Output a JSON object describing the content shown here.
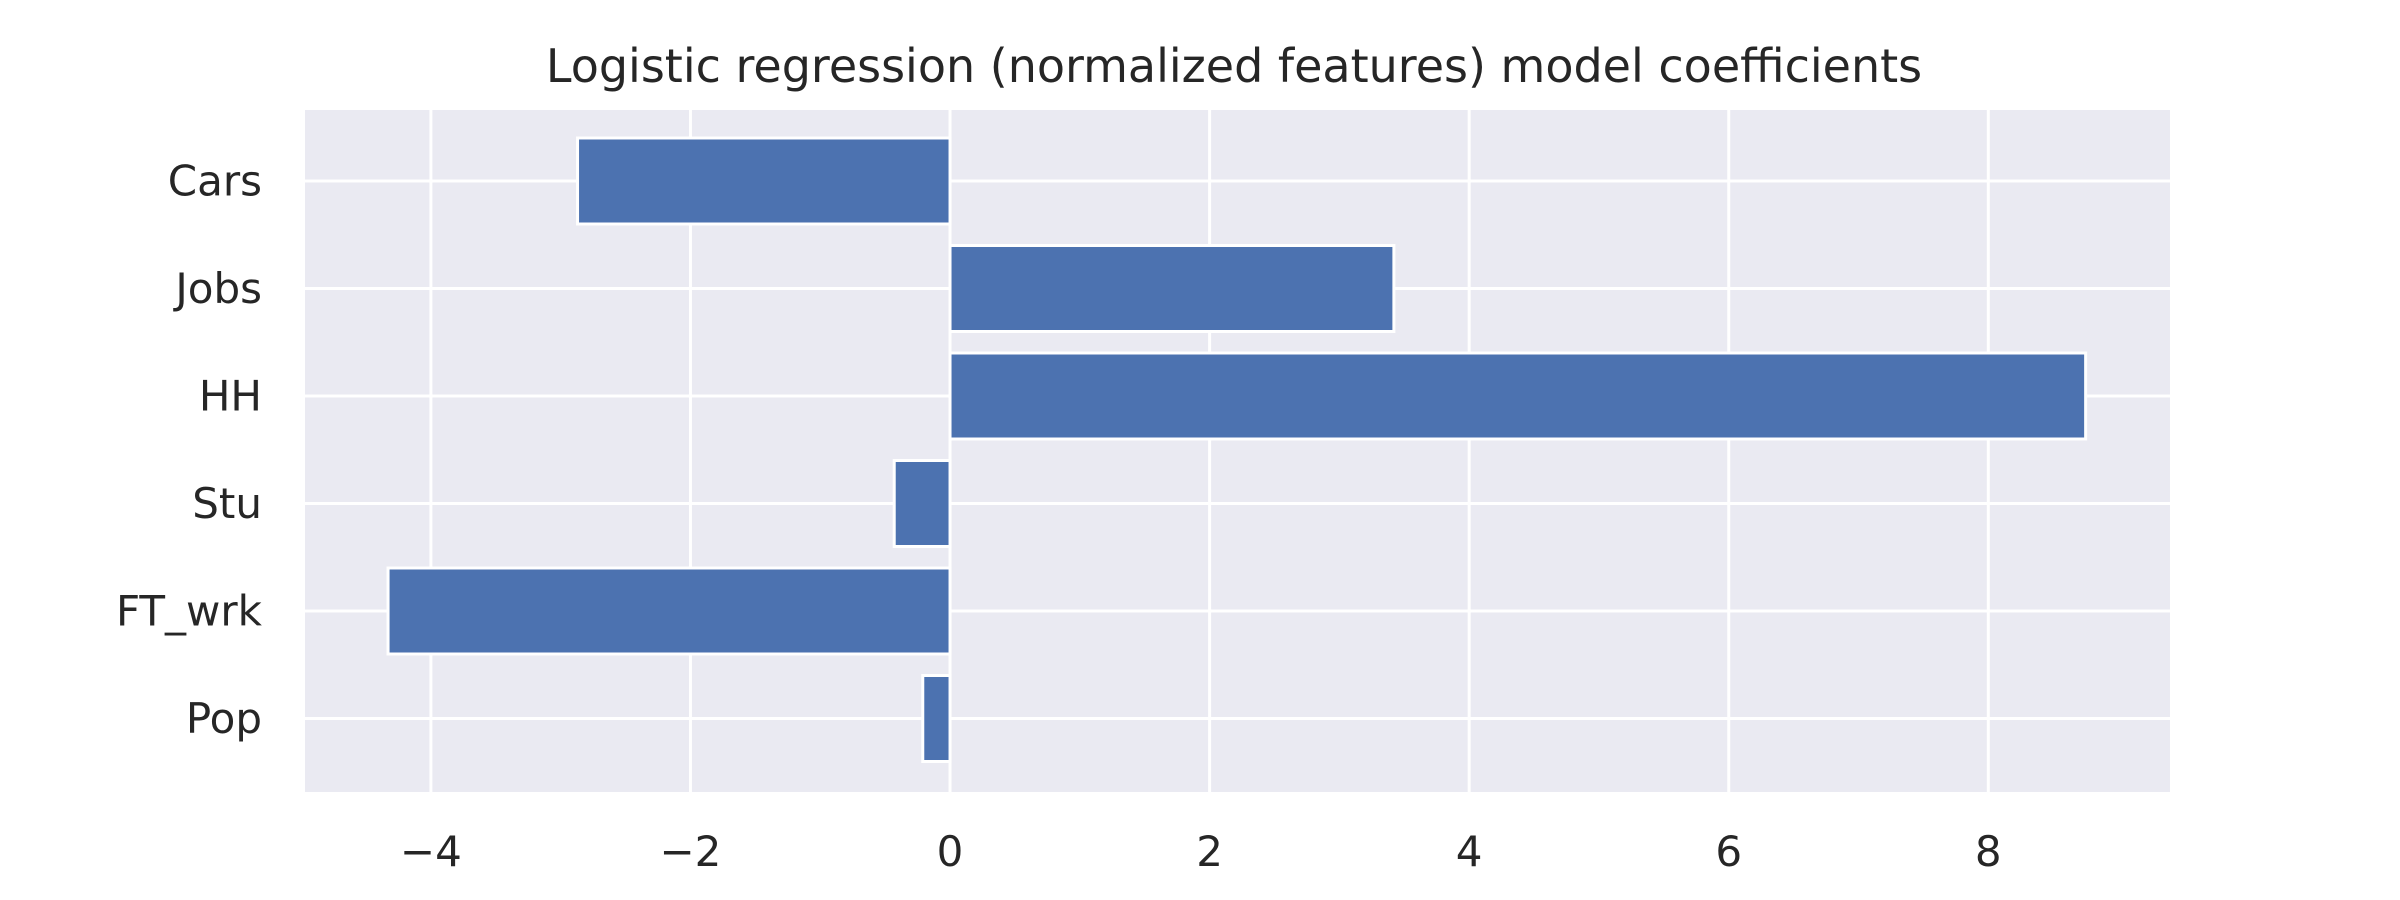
{
  "chart_data": {
    "type": "bar",
    "orientation": "horizontal",
    "title": "Logistic regression (normalized features) model coefficients",
    "xlabel": "",
    "ylabel": "",
    "categories": [
      "Cars",
      "Jobs",
      "HH",
      "Stu",
      "FT_wrk",
      "Pop"
    ],
    "values": [
      -2.87,
      3.42,
      8.75,
      -0.43,
      -4.33,
      -0.21
    ],
    "xlim": [
      -4.97,
      9.4
    ],
    "xticks": [
      -4,
      -2,
      0,
      2,
      4,
      6,
      8
    ],
    "xtick_labels": [
      "−4",
      "−2",
      "0",
      "2",
      "4",
      "6",
      "8"
    ],
    "grid": true,
    "legend": "none",
    "colors": {
      "bar": "#4c72b0",
      "plot_background": "#eaeaf2",
      "grid": "#ffffff",
      "text": "#262626"
    }
  }
}
